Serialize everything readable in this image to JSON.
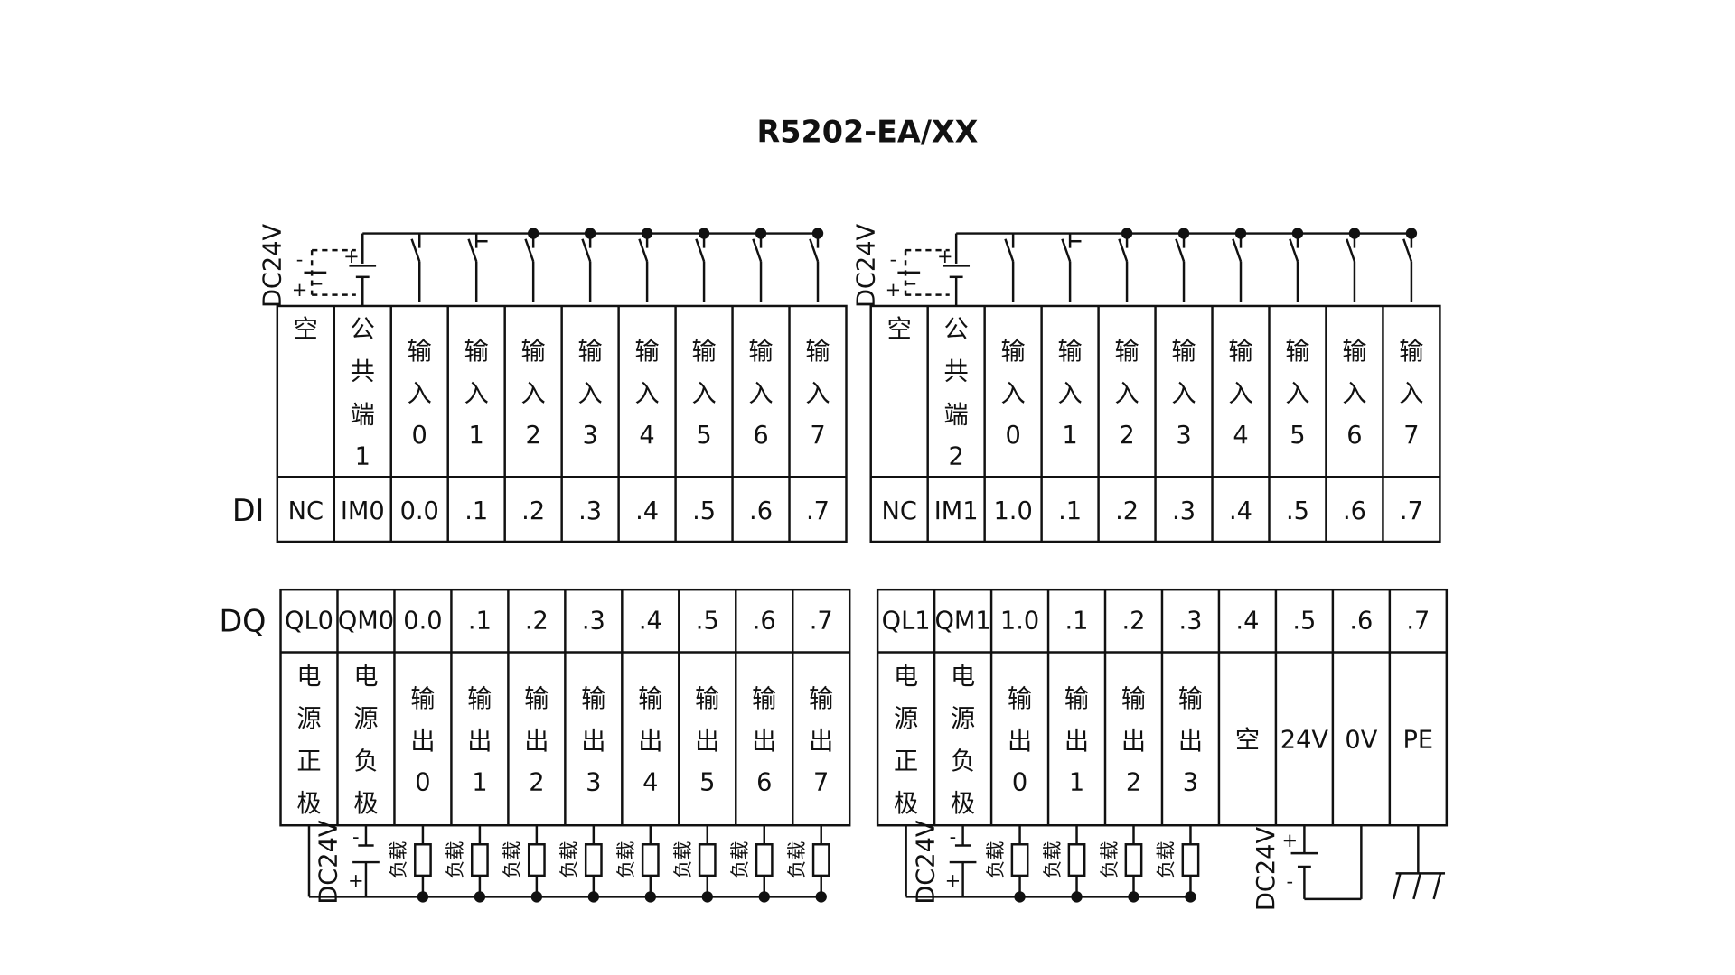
{
  "title": "R5202-EA/XX",
  "di_label": "DI",
  "dq_label": "DQ",
  "circuit": {
    "supply_label": "DC24V",
    "load_label": "负载",
    "plus": "+",
    "minus": "-"
  },
  "di_modules": [
    {
      "columns": [
        {
          "desc": [
            "空"
          ],
          "addr": "NC"
        },
        {
          "desc": [
            "公",
            "共",
            "端",
            "1"
          ],
          "addr": "IM0"
        },
        {
          "desc": [
            "输",
            "入",
            "0"
          ],
          "addr": "0.0"
        },
        {
          "desc": [
            "输",
            "入",
            "1"
          ],
          "addr": ".1"
        },
        {
          "desc": [
            "输",
            "入",
            "2"
          ],
          "addr": ".2"
        },
        {
          "desc": [
            "输",
            "入",
            "3"
          ],
          "addr": ".3"
        },
        {
          "desc": [
            "输",
            "入",
            "4"
          ],
          "addr": ".4"
        },
        {
          "desc": [
            "输",
            "入",
            "5"
          ],
          "addr": ".5"
        },
        {
          "desc": [
            "输",
            "入",
            "6"
          ],
          "addr": ".6"
        },
        {
          "desc": [
            "输",
            "入",
            "7"
          ],
          "addr": ".7"
        }
      ]
    },
    {
      "columns": [
        {
          "desc": [
            "空"
          ],
          "addr": "NC"
        },
        {
          "desc": [
            "公",
            "共",
            "端",
            "2"
          ],
          "addr": "IM1"
        },
        {
          "desc": [
            "输",
            "入",
            "0"
          ],
          "addr": "1.0"
        },
        {
          "desc": [
            "输",
            "入",
            "1"
          ],
          "addr": ".1"
        },
        {
          "desc": [
            "输",
            "入",
            "2"
          ],
          "addr": ".2"
        },
        {
          "desc": [
            "输",
            "入",
            "3"
          ],
          "addr": ".3"
        },
        {
          "desc": [
            "输",
            "入",
            "4"
          ],
          "addr": ".4"
        },
        {
          "desc": [
            "输",
            "入",
            "5"
          ],
          "addr": ".5"
        },
        {
          "desc": [
            "输",
            "入",
            "6"
          ],
          "addr": ".6"
        },
        {
          "desc": [
            "输",
            "入",
            "7"
          ],
          "addr": ".7"
        }
      ]
    }
  ],
  "dq_modules": [
    {
      "columns": [
        {
          "addr": "QL0",
          "desc": [
            "电",
            "源",
            "正",
            "极"
          ]
        },
        {
          "addr": "QM0",
          "desc": [
            "电",
            "源",
            "负",
            "极"
          ]
        },
        {
          "addr": "0.0",
          "desc": [
            "输",
            "出",
            "0"
          ]
        },
        {
          "addr": ".1",
          "desc": [
            "输",
            "出",
            "1"
          ]
        },
        {
          "addr": ".2",
          "desc": [
            "输",
            "出",
            "2"
          ]
        },
        {
          "addr": ".3",
          "desc": [
            "输",
            "出",
            "3"
          ]
        },
        {
          "addr": ".4",
          "desc": [
            "输",
            "出",
            "4"
          ]
        },
        {
          "addr": ".5",
          "desc": [
            "输",
            "出",
            "5"
          ]
        },
        {
          "addr": ".6",
          "desc": [
            "输",
            "出",
            "6"
          ]
        },
        {
          "addr": ".7",
          "desc": [
            "输",
            "出",
            "7"
          ]
        }
      ]
    },
    {
      "columns": [
        {
          "addr": "QL1",
          "desc": [
            "电",
            "源",
            "正",
            "极"
          ]
        },
        {
          "addr": "QM1",
          "desc": [
            "电",
            "源",
            "负",
            "极"
          ]
        },
        {
          "addr": "1.0",
          "desc": [
            "输",
            "出",
            "0"
          ]
        },
        {
          "addr": ".1",
          "desc": [
            "输",
            "出",
            "1"
          ]
        },
        {
          "addr": ".2",
          "desc": [
            "输",
            "出",
            "2"
          ]
        },
        {
          "addr": ".3",
          "desc": [
            "输",
            "出",
            "3"
          ]
        },
        {
          "addr": ".4",
          "desc": [
            "空"
          ]
        },
        {
          "addr": ".5",
          "desc": [
            "24V"
          ]
        },
        {
          "addr": ".6",
          "desc": [
            "0V"
          ]
        },
        {
          "addr": ".7",
          "desc": [
            "PE"
          ]
        }
      ]
    }
  ]
}
